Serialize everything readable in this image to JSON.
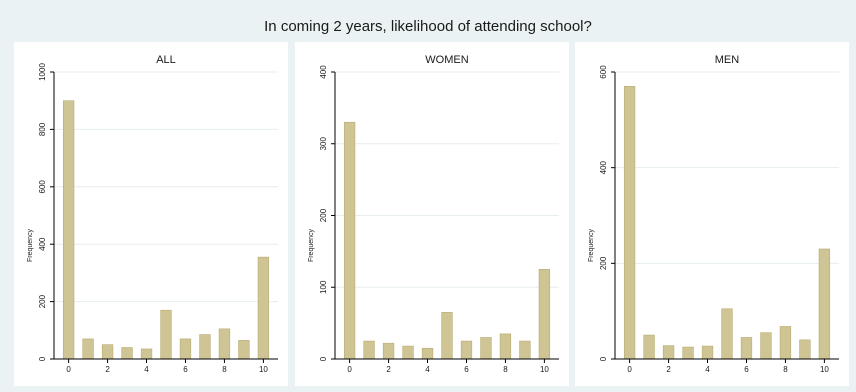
{
  "title": "In coming 2 years, likelihood of attending school?",
  "colors": {
    "background": "#eaf2f3",
    "panel": "#ffffff",
    "bar_fill": "#cfc493",
    "bar_edge": "#b8ac73"
  },
  "chart_data": [
    {
      "type": "bar",
      "title": "ALL",
      "ylabel": "Frequency",
      "xlabel": "",
      "categories": [
        0,
        1,
        2,
        3,
        4,
        5,
        6,
        7,
        8,
        9,
        10
      ],
      "values": [
        900,
        70,
        50,
        40,
        35,
        170,
        70,
        85,
        105,
        65,
        355
      ],
      "x_ticks": [
        "0",
        "2",
        "4",
        "6",
        "8",
        "10"
      ],
      "y_ticks": [
        0,
        200,
        400,
        600,
        800,
        1000
      ],
      "ylim": [
        0,
        1000
      ],
      "grid": true
    },
    {
      "type": "bar",
      "title": "WOMEN",
      "ylabel": "Frequency",
      "xlabel": "",
      "categories": [
        0,
        1,
        2,
        3,
        4,
        5,
        6,
        7,
        8,
        9,
        10
      ],
      "values": [
        330,
        25,
        22,
        18,
        15,
        65,
        25,
        30,
        35,
        25,
        125
      ],
      "x_ticks": [
        "0",
        "2",
        "4",
        "6",
        "8",
        "10"
      ],
      "y_ticks": [
        0,
        100,
        200,
        300,
        400
      ],
      "ylim": [
        0,
        400
      ],
      "grid": true
    },
    {
      "type": "bar",
      "title": "MEN",
      "ylabel": "Frequency",
      "xlabel": "",
      "categories": [
        0,
        1,
        2,
        3,
        4,
        5,
        6,
        7,
        8,
        9,
        10
      ],
      "values": [
        570,
        50,
        28,
        25,
        27,
        105,
        45,
        55,
        68,
        40,
        230
      ],
      "x_ticks": [
        "0",
        "2",
        "4",
        "6",
        "8",
        "10"
      ],
      "y_ticks": [
        0,
        200,
        400,
        600
      ],
      "ylim": [
        0,
        600
      ],
      "grid": true
    }
  ]
}
